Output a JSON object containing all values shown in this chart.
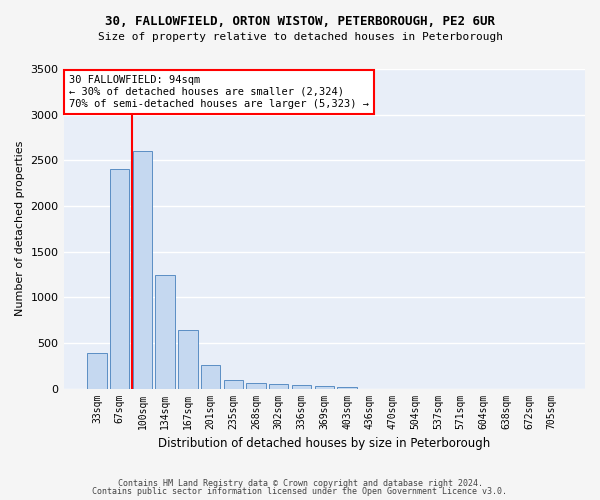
{
  "title_line1": "30, FALLOWFIELD, ORTON WISTOW, PETERBOROUGH, PE2 6UR",
  "title_line2": "Size of property relative to detached houses in Peterborough",
  "xlabel": "Distribution of detached houses by size in Peterborough",
  "ylabel": "Number of detached properties",
  "categories": [
    "33sqm",
    "67sqm",
    "100sqm",
    "134sqm",
    "167sqm",
    "201sqm",
    "235sqm",
    "268sqm",
    "302sqm",
    "336sqm",
    "369sqm",
    "403sqm",
    "436sqm",
    "470sqm",
    "504sqm",
    "537sqm",
    "571sqm",
    "604sqm",
    "638sqm",
    "672sqm",
    "705sqm"
  ],
  "values": [
    390,
    2400,
    2600,
    1240,
    640,
    255,
    95,
    60,
    55,
    40,
    30,
    20,
    0,
    0,
    0,
    0,
    0,
    0,
    0,
    0,
    0
  ],
  "bar_color": "#c5d8f0",
  "bar_edge_color": "#5b8ec4",
  "annotation_line1": "30 FALLOWFIELD: 94sqm",
  "annotation_line2": "← 30% of detached houses are smaller (2,324)",
  "annotation_line3": "70% of semi-detached houses are larger (5,323) →",
  "ylim": [
    0,
    3500
  ],
  "yticks": [
    0,
    500,
    1000,
    1500,
    2000,
    2500,
    3000,
    3500
  ],
  "background_color": "#e8eef8",
  "grid_color": "#ffffff",
  "fig_bg_color": "#f5f5f5",
  "footer_line1": "Contains HM Land Registry data © Crown copyright and database right 2024.",
  "footer_line2": "Contains public sector information licensed under the Open Government Licence v3.0."
}
